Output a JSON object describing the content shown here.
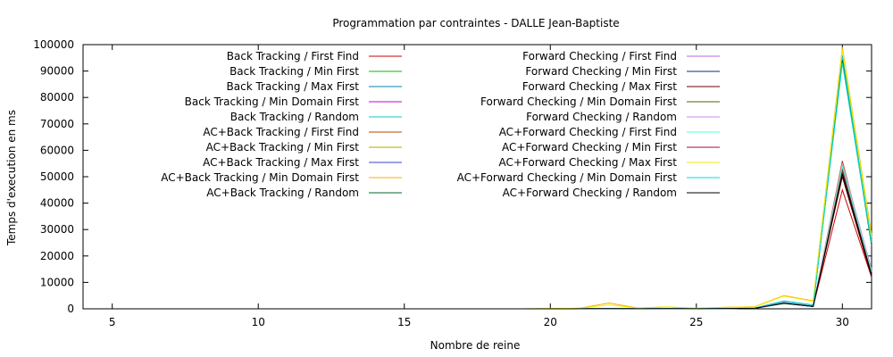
{
  "chart_data": {
    "type": "line",
    "title": "Programmation par contraintes - DALLE Jean-Baptiste",
    "xlabel": "Nombre de reine",
    "ylabel": "Temps d'execution en ms",
    "xlim": [
      4,
      31
    ],
    "ylim": [
      0,
      100000
    ],
    "xticks": [
      5,
      10,
      15,
      20,
      25,
      30
    ],
    "yticks": [
      0,
      10000,
      20000,
      30000,
      40000,
      50000,
      60000,
      70000,
      80000,
      90000,
      100000
    ],
    "x": [
      4,
      5,
      6,
      7,
      8,
      9,
      10,
      11,
      12,
      13,
      14,
      15,
      16,
      17,
      18,
      19,
      20,
      21,
      22,
      23,
      24,
      25,
      26,
      27,
      28,
      29,
      30,
      31
    ],
    "legend_position": "top, two columns",
    "grid": false,
    "series": [
      {
        "name": "Back Tracking / First Find",
        "color": "#cc0000",
        "values": [
          0,
          0,
          0,
          0,
          0,
          0,
          0,
          0,
          0,
          0,
          0,
          0,
          0,
          0,
          0,
          0,
          10,
          20,
          60,
          30,
          90,
          30,
          120,
          200,
          2100,
          900,
          45000,
          12000
        ]
      },
      {
        "name": "Back Tracking / Min First",
        "color": "#00bb00",
        "values": [
          0,
          0,
          0,
          0,
          0,
          0,
          0,
          0,
          0,
          0,
          0,
          0,
          0,
          0,
          0,
          0,
          10,
          20,
          60,
          30,
          90,
          30,
          110,
          190,
          2000,
          850,
          52000,
          15000
        ]
      },
      {
        "name": "Back Tracking / Max First",
        "color": "#0088aa",
        "values": [
          0,
          0,
          0,
          0,
          0,
          0,
          0,
          0,
          0,
          0,
          0,
          0,
          0,
          0,
          0,
          0,
          10,
          20,
          70,
          30,
          100,
          40,
          150,
          250,
          2500,
          1100,
          95000,
          25000
        ]
      },
      {
        "name": "Back Tracking / Min Domain First",
        "color": "#cc00cc",
        "values": [
          0,
          0,
          0,
          0,
          0,
          0,
          0,
          0,
          0,
          0,
          0,
          0,
          0,
          0,
          0,
          0,
          10,
          20,
          60,
          30,
          90,
          30,
          120,
          200,
          2100,
          900,
          53000,
          14000
        ]
      },
      {
        "name": "Back Tracking / Random",
        "color": "#00cccc",
        "values": [
          0,
          0,
          0,
          0,
          0,
          0,
          0,
          0,
          0,
          0,
          0,
          0,
          0,
          0,
          0,
          0,
          20,
          30,
          80,
          40,
          110,
          50,
          180,
          300,
          3000,
          1500,
          96000,
          26000
        ]
      },
      {
        "name": "AC+Back Tracking / First Find",
        "color": "#bb4400",
        "values": [
          0,
          0,
          0,
          0,
          0,
          0,
          0,
          0,
          0,
          0,
          0,
          0,
          0,
          0,
          0,
          0,
          10,
          20,
          60,
          30,
          90,
          30,
          120,
          200,
          2100,
          900,
          56000,
          13000
        ]
      },
      {
        "name": "AC+Back Tracking / Min First",
        "color": "#aaaa00",
        "values": [
          0,
          0,
          0,
          0,
          0,
          0,
          0,
          0,
          0,
          0,
          0,
          0,
          0,
          0,
          0,
          0,
          10,
          20,
          60,
          30,
          90,
          30,
          120,
          200,
          2200,
          950,
          55000,
          14000
        ]
      },
      {
        "name": "AC+Back Tracking / Max First",
        "color": "#3344cc",
        "values": [
          0,
          0,
          0,
          0,
          0,
          0,
          0,
          0,
          0,
          0,
          0,
          0,
          0,
          0,
          0,
          0,
          10,
          20,
          60,
          30,
          90,
          30,
          120,
          200,
          2100,
          900,
          51000,
          13000
        ]
      },
      {
        "name": "AC+Back Tracking / Min Domain First",
        "color": "#ffaa00",
        "values": [
          0,
          0,
          0,
          0,
          0,
          0,
          0,
          0,
          0,
          0,
          0,
          0,
          0,
          0,
          0,
          0,
          100,
          200,
          2200,
          300,
          700,
          200,
          600,
          800,
          5000,
          3000,
          99000,
          28000
        ]
      },
      {
        "name": "AC+Back Tracking / Random",
        "color": "#006633",
        "values": [
          0,
          0,
          0,
          0,
          0,
          0,
          0,
          0,
          0,
          0,
          0,
          0,
          0,
          0,
          0,
          0,
          10,
          20,
          60,
          30,
          90,
          30,
          120,
          200,
          2100,
          900,
          94000,
          24000
        ]
      },
      {
        "name": "Forward Checking / First Find",
        "color": "#bb66dd",
        "values": [
          0,
          0,
          0,
          0,
          0,
          0,
          0,
          0,
          0,
          0,
          0,
          0,
          0,
          0,
          0,
          0,
          10,
          20,
          60,
          30,
          90,
          30,
          120,
          200,
          2100,
          900,
          54000,
          14000
        ]
      },
      {
        "name": "Forward Checking / Min First",
        "color": "#003366",
        "values": [
          0,
          0,
          0,
          0,
          0,
          0,
          0,
          0,
          0,
          0,
          0,
          0,
          0,
          0,
          0,
          0,
          10,
          20,
          60,
          30,
          90,
          30,
          120,
          200,
          2100,
          900,
          52000,
          13000
        ]
      },
      {
        "name": "Forward Checking / Max First",
        "color": "#660000",
        "values": [
          0,
          0,
          0,
          0,
          0,
          0,
          0,
          0,
          0,
          0,
          0,
          0,
          0,
          0,
          0,
          0,
          10,
          20,
          60,
          30,
          90,
          30,
          120,
          200,
          2100,
          900,
          50000,
          12000
        ]
      },
      {
        "name": "Forward Checking / Min Domain First",
        "color": "#446600",
        "values": [
          0,
          0,
          0,
          0,
          0,
          0,
          0,
          0,
          0,
          0,
          0,
          0,
          0,
          0,
          0,
          0,
          10,
          20,
          60,
          30,
          90,
          30,
          120,
          200,
          2100,
          900,
          53000,
          14000
        ]
      },
      {
        "name": "Forward Checking / Random",
        "color": "#cc88ee",
        "values": [
          0,
          0,
          0,
          0,
          0,
          0,
          0,
          0,
          0,
          0,
          0,
          0,
          0,
          0,
          0,
          0,
          10,
          20,
          80,
          30,
          100,
          40,
          140,
          220,
          2300,
          1000,
          55000,
          15000
        ]
      },
      {
        "name": "AC+Forward Checking / First Find",
        "color": "#55ffcc",
        "values": [
          0,
          0,
          0,
          0,
          0,
          0,
          0,
          0,
          0,
          0,
          0,
          0,
          0,
          0,
          0,
          0,
          10,
          20,
          60,
          30,
          90,
          30,
          120,
          200,
          2100,
          900,
          54000,
          14000
        ]
      },
      {
        "name": "AC+Forward Checking / Min First",
        "color": "#991133",
        "values": [
          0,
          0,
          0,
          0,
          0,
          0,
          0,
          0,
          0,
          0,
          0,
          0,
          0,
          0,
          0,
          0,
          10,
          20,
          60,
          30,
          90,
          30,
          120,
          200,
          2100,
          900,
          52000,
          13000
        ]
      },
      {
        "name": "AC+Forward Checking / Max First",
        "color": "#eeee00",
        "values": [
          0,
          0,
          0,
          0,
          0,
          0,
          0,
          0,
          0,
          0,
          0,
          0,
          0,
          0,
          0,
          0,
          100,
          200,
          1500,
          300,
          700,
          200,
          600,
          700,
          4800,
          2800,
          98000,
          27000
        ]
      },
      {
        "name": "AC+Forward Checking / Min Domain First",
        "color": "#00dddd",
        "values": [
          0,
          0,
          0,
          0,
          0,
          0,
          0,
          0,
          0,
          0,
          0,
          0,
          0,
          0,
          0,
          0,
          10,
          20,
          60,
          30,
          90,
          30,
          120,
          200,
          2100,
          900,
          93000,
          25000
        ]
      },
      {
        "name": "AC+Forward Checking / Random",
        "color": "#000000",
        "values": [
          0,
          0,
          0,
          0,
          0,
          0,
          0,
          0,
          0,
          0,
          0,
          0,
          0,
          0,
          0,
          0,
          10,
          20,
          60,
          30,
          90,
          30,
          120,
          200,
          2100,
          900,
          51000,
          13000
        ]
      }
    ]
  }
}
